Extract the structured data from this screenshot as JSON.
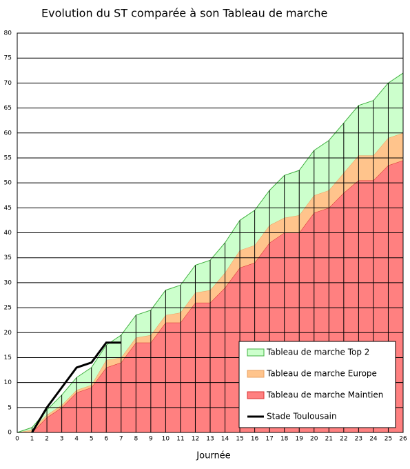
{
  "chart_data": {
    "type": "area",
    "stacked": true,
    "title": "Evolution du ST comparée à son Tableau de marche",
    "x_label": "Journée",
    "x": [
      0,
      1,
      2,
      3,
      4,
      5,
      6,
      7,
      8,
      9,
      10,
      11,
      12,
      13,
      14,
      15,
      16,
      17,
      18,
      19,
      20,
      21,
      22,
      23,
      24,
      25,
      26
    ],
    "xlim": [
      0,
      26
    ],
    "xticks": [
      0,
      1,
      2,
      3,
      4,
      5,
      6,
      7,
      8,
      9,
      10,
      11,
      12,
      13,
      14,
      15,
      16,
      17,
      18,
      19,
      20,
      21,
      22,
      23,
      24,
      25,
      26
    ],
    "ylim": [
      0,
      80
    ],
    "yticks": [
      0,
      5,
      10,
      15,
      20,
      25,
      30,
      35,
      40,
      45,
      50,
      55,
      60,
      65,
      70,
      75,
      80
    ],
    "grid": true,
    "legend": "lower right",
    "series": [
      {
        "name": "Tableau de marche Maintien",
        "color": "#ff8080",
        "edge": "#d83030",
        "values": [
          0,
          0,
          3,
          5,
          8,
          9,
          13,
          14,
          18,
          18,
          22,
          22,
          26,
          26,
          29,
          33,
          34,
          38,
          40,
          40,
          44,
          45,
          48,
          50.5,
          50.5,
          53.5,
          54.5
        ]
      },
      {
        "name": "Tableau de marche Europe",
        "color": "#ffc48c",
        "edge": "#e8a060",
        "values": [
          0,
          0.5,
          0.5,
          0.5,
          0.5,
          0.5,
          1.5,
          1,
          1,
          1.5,
          1.5,
          2,
          2,
          2.5,
          3,
          3.5,
          3.5,
          3.5,
          3,
          3.5,
          3.5,
          3.5,
          4,
          5,
          5,
          5.5,
          5.5
        ]
      },
      {
        "name": "Tableau de marche Top 2",
        "color": "#ccffcc",
        "edge": "#40b040",
        "values": [
          0,
          0.5,
          1,
          2,
          2.5,
          3.5,
          3,
          4.5,
          4.5,
          5,
          5,
          5.5,
          5.5,
          6,
          6,
          6,
          7,
          7,
          8.5,
          9,
          9,
          10,
          10,
          10,
          11,
          11,
          12
        ]
      },
      {
        "name": "Stade Toulousain",
        "color": "#000000",
        "type": "line",
        "values": [
          null,
          0,
          5,
          9,
          13,
          14,
          18,
          18,
          null,
          null,
          null,
          null,
          null,
          null,
          null,
          null,
          null,
          null,
          null,
          null,
          null,
          null,
          null,
          null,
          null,
          null,
          null
        ]
      }
    ]
  }
}
